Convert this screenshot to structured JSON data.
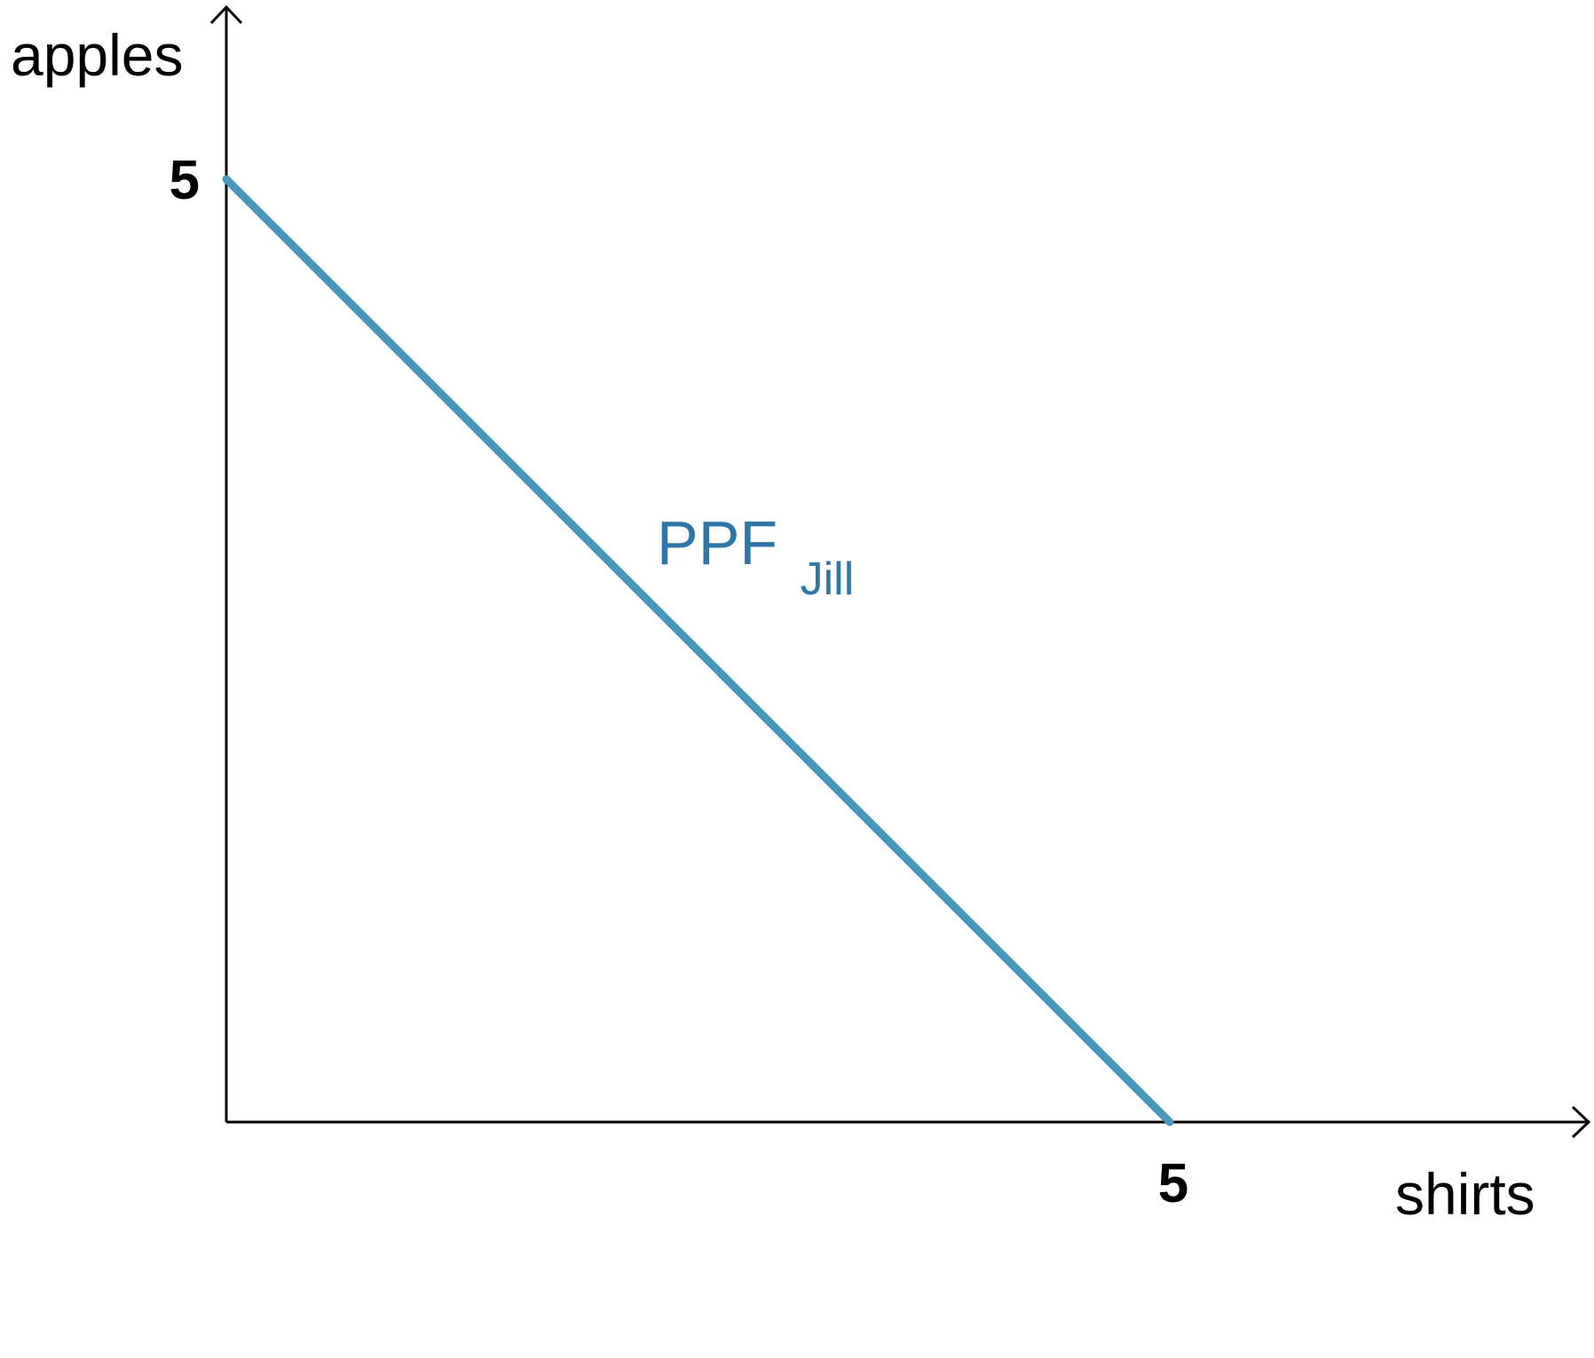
{
  "chart_data": {
    "type": "line",
    "xlabel": "shirts",
    "ylabel": "apples",
    "xlim": [
      0,
      6.5
    ],
    "ylim": [
      0,
      6
    ],
    "x_ticks": [
      {
        "value": 5,
        "label": "5"
      }
    ],
    "y_ticks": [
      {
        "value": 5,
        "label": "5"
      }
    ],
    "grid": false,
    "series": [
      {
        "name": "PPF",
        "name_subscript": "Jill",
        "color": "#4a97bd",
        "label_color": "#2e76a8",
        "points": [
          {
            "x": 0,
            "y": 5
          },
          {
            "x": 5,
            "y": 0
          }
        ]
      }
    ]
  }
}
